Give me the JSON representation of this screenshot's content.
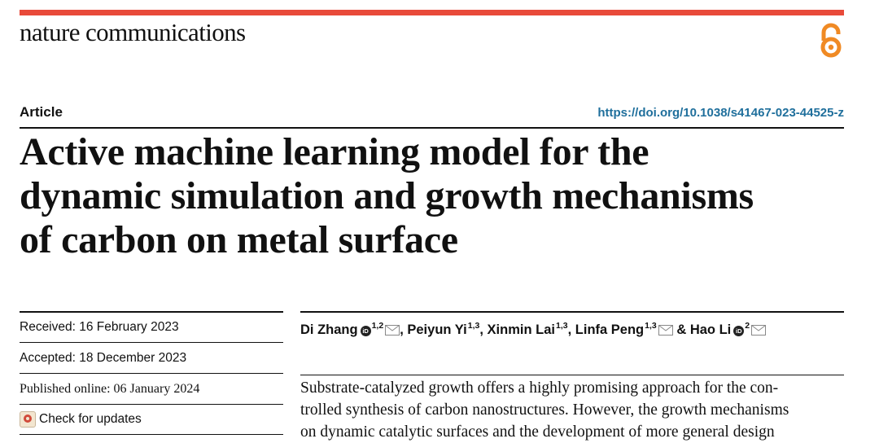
{
  "header": {
    "journal": "nature communications",
    "accent_color": "#e84a3a",
    "open_access_icon": "open-access-icon"
  },
  "article": {
    "type_label": "Article",
    "doi": "https://doi.org/10.1038/s41467-023-44525-z",
    "title_lines": [
      "Active machine learning model for the",
      "dynamic simulation and growth mechanisms",
      "of carbon on metal surface"
    ]
  },
  "dates": {
    "received": "Received: 16 February 2023",
    "accepted": "Accepted: 18 December 2023",
    "published": "Published online: 06 January 2024",
    "check_updates": "Check for updates"
  },
  "authors": {
    "a1_name": "Di Zhang",
    "a1_aff": "1,2",
    "sep1": ",",
    "a2_name": "Peiyun Yi",
    "a2_aff": "1,3",
    "sep2": ",",
    "a3_name": "Xinmin Lai",
    "a3_aff": "1,3",
    "sep3": ",",
    "a4_name": "Linfa Peng",
    "a4_aff": "1,3",
    "amp": "&",
    "a5_name": "Hao Li",
    "a5_aff": "2",
    "orcid_text": "iD"
  },
  "abstract_lines": [
    "Substrate-catalyzed growth offers a highly promising approach for the con-",
    "trolled synthesis of carbon nanostructures. However, the growth mechanisms",
    "on dynamic catalytic surfaces and the development of more general design"
  ]
}
